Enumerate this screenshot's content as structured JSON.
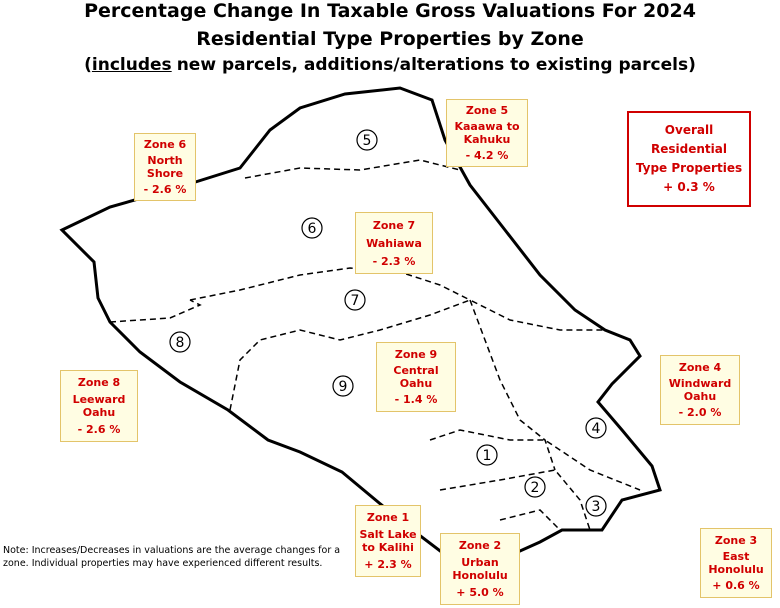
{
  "title": [
    "Percentage Change In Taxable Gross Valuations For 2024",
    "Residential Type Properties by Zone"
  ],
  "subtitle": {
    "open": "(",
    "emphasis": "includes",
    "rest": "new parcels, additions/alterations to existing parcels)"
  },
  "overall": [
    "Overall",
    "Residential",
    "Type Properties",
    "+ 0.3 %"
  ],
  "zones": [
    {
      "number": "5",
      "title": "Zone 5",
      "area": [
        "Kaaawa to",
        "Kahuku"
      ],
      "change": "- 4.2 %"
    },
    {
      "number": "6",
      "title": "Zone 6",
      "area": [
        "North",
        "Shore"
      ],
      "change": "- 2.6 %"
    },
    {
      "number": "7",
      "title": "Zone 7",
      "area": [
        "Wahiawa"
      ],
      "change": "- 2.3 %"
    },
    {
      "number": "8",
      "title": "Zone 8",
      "area": [
        "Leeward",
        "Oahu"
      ],
      "change": "- 2.6 %"
    },
    {
      "number": "9",
      "title": "Zone 9",
      "area": [
        "Central",
        "Oahu"
      ],
      "change": "- 1.4 %"
    },
    {
      "number": "4",
      "title": "Zone 4",
      "area": [
        "Windward",
        "Oahu"
      ],
      "change": "- 2.0 %"
    },
    {
      "number": "1",
      "title": "Zone 1",
      "area": [
        "Salt Lake",
        "to Kalihi"
      ],
      "change": "+ 2.3 %"
    },
    {
      "number": "2",
      "title": "Zone 2",
      "area": [
        "Urban",
        "Honolulu"
      ],
      "change": "+ 5.0 %"
    },
    {
      "number": "3",
      "title": "Zone 3",
      "area": [
        "East",
        "Honolulu"
      ],
      "change": "+ 0.6 %"
    }
  ],
  "note": "Note: Increases/Decreases in valuations are the average changes for a zone. Individual properties may have experienced different results."
}
